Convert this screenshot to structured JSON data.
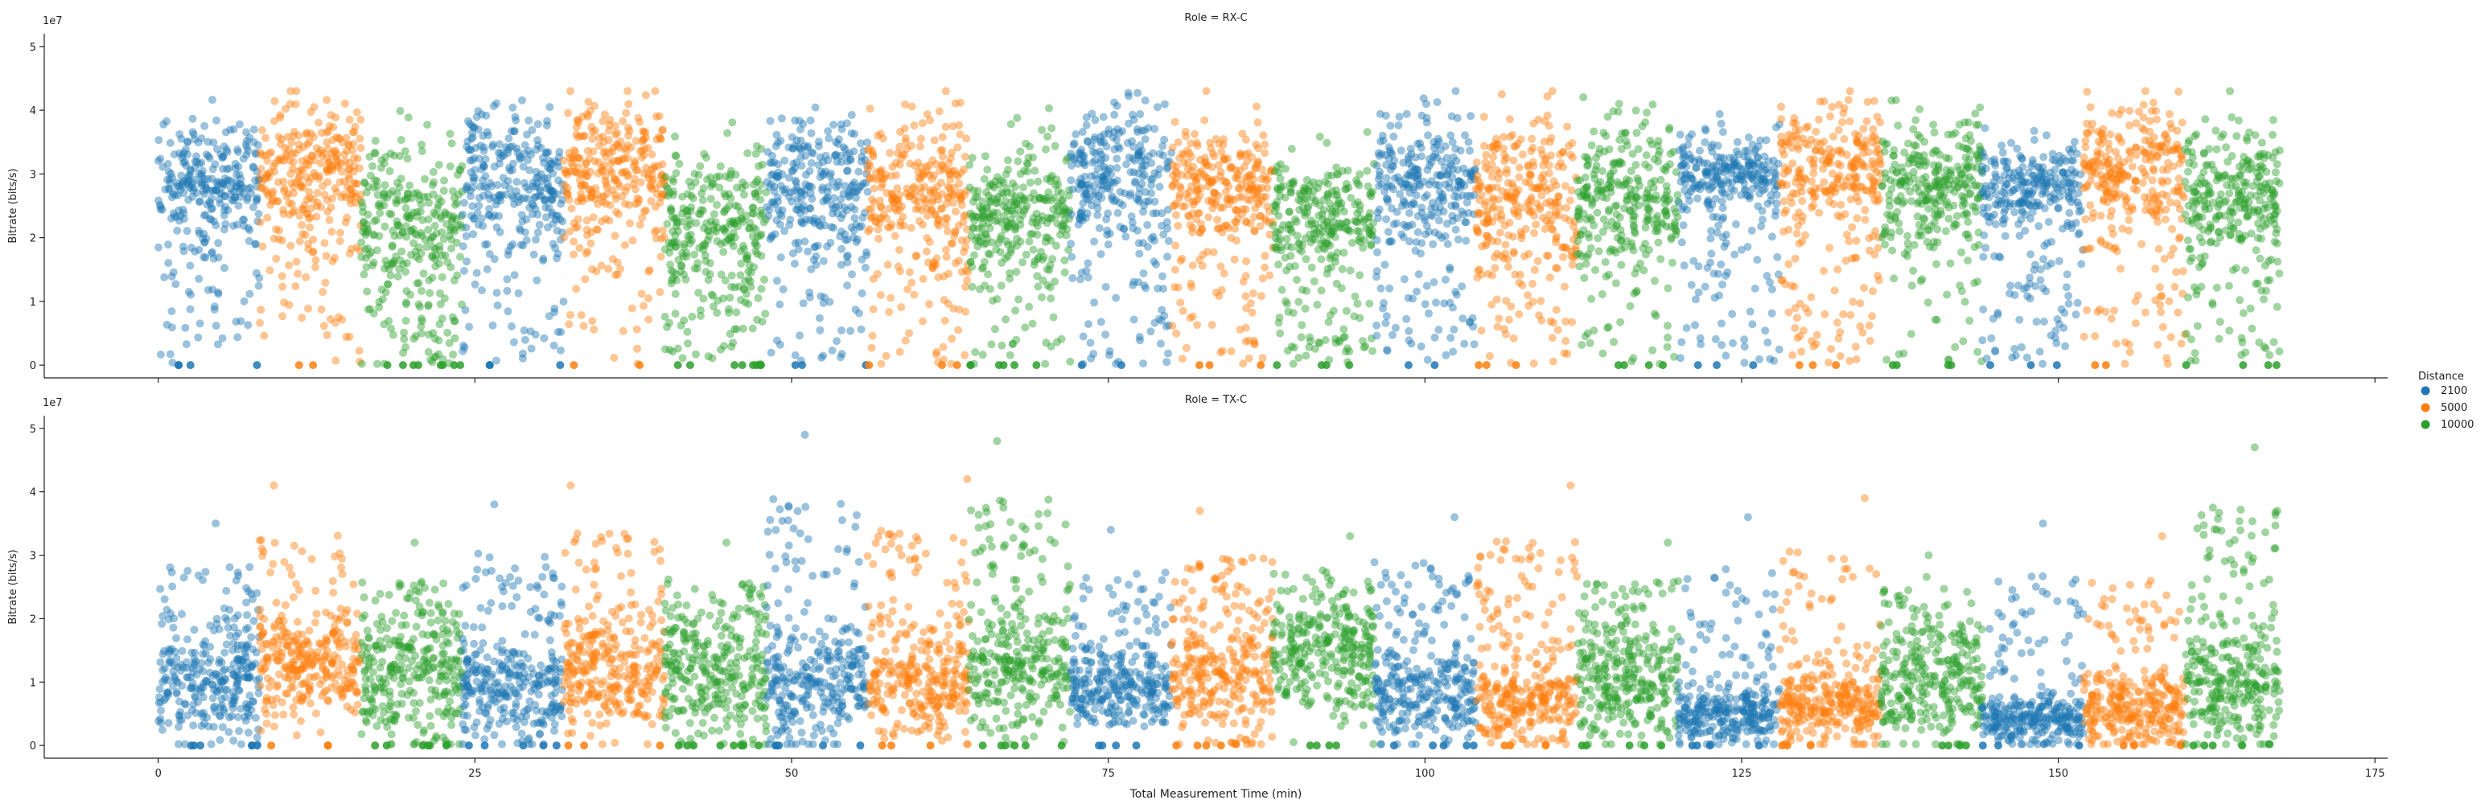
{
  "chart_data": {
    "type": "scatter",
    "xlabel": "Total Measurement Time (min)",
    "x_ticks": [
      0,
      25,
      50,
      75,
      100,
      125,
      150,
      175
    ],
    "xlim": [
      -9,
      176
    ],
    "legend": {
      "title": "Distance",
      "placement": "right",
      "entries": [
        "2100",
        "5000",
        "10000"
      ]
    },
    "colors": {
      "2100": "#1f77b4",
      "5000": "#ff7f0e",
      "10000": "#2ca02c"
    },
    "point_alpha": 0.45,
    "panels": [
      {
        "title": "Role = RX-C",
        "ylabel": "Bitrate (bits/s)",
        "y_offset_label": "1e7",
        "y_ticks": [
          0,
          1,
          2,
          3,
          4,
          5
        ],
        "ylim": [
          -0.2,
          5.2
        ],
        "grid": false,
        "segments": [
          {
            "distance": "2100",
            "x": [
              0,
              8
            ],
            "center": 2.9,
            "spread": 0.45,
            "low_tail": 0.25,
            "zeros": 4
          },
          {
            "distance": "5000",
            "x": [
              8,
              16
            ],
            "center": 3.1,
            "spread": 0.55,
            "low_tail": 0.22,
            "zeros": 2
          },
          {
            "distance": "10000",
            "x": [
              16,
              24
            ],
            "center": 2.4,
            "spread": 0.55,
            "low_tail": 0.28,
            "zeros": 8
          },
          {
            "distance": "2100",
            "x": [
              24,
              32
            ],
            "center": 3.0,
            "spread": 0.5,
            "low_tail": 0.3,
            "zeros": 3
          },
          {
            "distance": "5000",
            "x": [
              32,
              40
            ],
            "center": 3.1,
            "spread": 0.55,
            "low_tail": 0.22,
            "zeros": 2
          },
          {
            "distance": "10000",
            "x": [
              40,
              48
            ],
            "center": 2.3,
            "spread": 0.55,
            "low_tail": 0.3,
            "zeros": 8
          },
          {
            "distance": "2100",
            "x": [
              48,
              56
            ],
            "center": 2.9,
            "spread": 0.55,
            "low_tail": 0.28,
            "zeros": 3
          },
          {
            "distance": "5000",
            "x": [
              56,
              64
            ],
            "center": 2.8,
            "spread": 0.55,
            "low_tail": 0.25,
            "zeros": 3
          },
          {
            "distance": "10000",
            "x": [
              64,
              72
            ],
            "center": 2.5,
            "spread": 0.5,
            "low_tail": 0.25,
            "zeros": 6
          },
          {
            "distance": "2100",
            "x": [
              72,
              80
            ],
            "center": 3.0,
            "spread": 0.5,
            "low_tail": 0.28,
            "zeros": 2
          },
          {
            "distance": "5000",
            "x": [
              80,
              88
            ],
            "center": 2.8,
            "spread": 0.5,
            "low_tail": 0.22,
            "zeros": 3
          },
          {
            "distance": "10000",
            "x": [
              88,
              96
            ],
            "center": 2.4,
            "spread": 0.45,
            "low_tail": 0.25,
            "zeros": 4
          },
          {
            "distance": "2100",
            "x": [
              96,
              104
            ],
            "center": 3.0,
            "spread": 0.5,
            "low_tail": 0.25,
            "zeros": 2
          },
          {
            "distance": "5000",
            "x": [
              104,
              112
            ],
            "center": 2.8,
            "spread": 0.6,
            "low_tail": 0.28,
            "zeros": 3
          },
          {
            "distance": "10000",
            "x": [
              112,
              120
            ],
            "center": 2.7,
            "spread": 0.55,
            "low_tail": 0.25,
            "zeros": 4
          },
          {
            "distance": "2100",
            "x": [
              120,
              128
            ],
            "center": 3.0,
            "spread": 0.3,
            "low_tail": 0.3,
            "zeros": 3
          },
          {
            "distance": "5000",
            "x": [
              128,
              136
            ],
            "center": 3.2,
            "spread": 0.5,
            "low_tail": 0.3,
            "zeros": 3
          },
          {
            "distance": "10000",
            "x": [
              136,
              144
            ],
            "center": 2.9,
            "spread": 0.5,
            "low_tail": 0.22,
            "zeros": 4
          },
          {
            "distance": "2100",
            "x": [
              144,
              152
            ],
            "center": 2.85,
            "spread": 0.35,
            "low_tail": 0.3,
            "zeros": 3
          },
          {
            "distance": "5000",
            "x": [
              152,
              160
            ],
            "center": 3.0,
            "spread": 0.55,
            "low_tail": 0.22,
            "zeros": 2
          },
          {
            "distance": "10000",
            "x": [
              160,
              167.5
            ],
            "center": 2.7,
            "spread": 0.55,
            "low_tail": 0.22,
            "zeros": 4
          }
        ]
      },
      {
        "title": "Role = TX-C",
        "ylabel": "Bitrate (bits/s)",
        "y_offset_label": "1e7",
        "y_ticks": [
          0,
          1,
          2,
          3,
          4,
          5
        ],
        "ylim": [
          -0.2,
          5.2
        ],
        "grid": false,
        "segments": [
          {
            "distance": "2100",
            "x": [
              0,
              8
            ],
            "center": 0.9,
            "spread": 0.4,
            "high_tail": 0.25,
            "high_max": 3.5,
            "zeros": 6
          },
          {
            "distance": "5000",
            "x": [
              8,
              16
            ],
            "center": 1.2,
            "spread": 0.4,
            "high_tail": 0.25,
            "high_max": 4.1,
            "zeros": 3
          },
          {
            "distance": "10000",
            "x": [
              16,
              24
            ],
            "center": 1.1,
            "spread": 0.55,
            "high_tail": 0.2,
            "high_max": 3.2,
            "zeros": 6
          },
          {
            "distance": "2100",
            "x": [
              24,
              32
            ],
            "center": 0.85,
            "spread": 0.4,
            "high_tail": 0.25,
            "high_max": 3.8,
            "zeros": 5
          },
          {
            "distance": "5000",
            "x": [
              32,
              40
            ],
            "center": 1.1,
            "spread": 0.45,
            "high_tail": 0.25,
            "high_max": 4.1,
            "zeros": 3
          },
          {
            "distance": "10000",
            "x": [
              40,
              48
            ],
            "center": 1.1,
            "spread": 0.55,
            "high_tail": 0.2,
            "high_max": 3.2,
            "zeros": 8
          },
          {
            "distance": "2100",
            "x": [
              48,
              56
            ],
            "center": 0.9,
            "spread": 0.45,
            "high_tail": 0.25,
            "high_max": 4.9,
            "zeros": 5
          },
          {
            "distance": "5000",
            "x": [
              56,
              64
            ],
            "center": 0.95,
            "spread": 0.45,
            "high_tail": 0.25,
            "high_max": 4.2,
            "zeros": 3
          },
          {
            "distance": "10000",
            "x": [
              64,
              72
            ],
            "center": 1.2,
            "spread": 0.5,
            "high_tail": 0.2,
            "high_max": 4.8,
            "zeros": 6
          },
          {
            "distance": "2100",
            "x": [
              72,
              80
            ],
            "center": 0.85,
            "spread": 0.35,
            "high_tail": 0.25,
            "high_max": 3.4,
            "zeros": 4
          },
          {
            "distance": "5000",
            "x": [
              80,
              88
            ],
            "center": 1.0,
            "spread": 0.5,
            "high_tail": 0.25,
            "high_max": 3.7,
            "zeros": 4
          },
          {
            "distance": "10000",
            "x": [
              88,
              96
            ],
            "center": 1.4,
            "spread": 0.5,
            "high_tail": 0.2,
            "high_max": 3.3,
            "zeros": 4
          },
          {
            "distance": "2100",
            "x": [
              96,
              104
            ],
            "center": 0.8,
            "spread": 0.4,
            "high_tail": 0.25,
            "high_max": 3.6,
            "zeros": 5
          },
          {
            "distance": "5000",
            "x": [
              104,
              112
            ],
            "center": 0.6,
            "spread": 0.3,
            "high_tail": 0.35,
            "high_max": 4.1,
            "zeros": 3
          },
          {
            "distance": "10000",
            "x": [
              112,
              120
            ],
            "center": 1.0,
            "spread": 0.5,
            "high_tail": 0.2,
            "high_max": 3.2,
            "zeros": 5
          },
          {
            "distance": "2100",
            "x": [
              120,
              128
            ],
            "center": 0.45,
            "spread": 0.25,
            "high_tail": 0.25,
            "high_max": 3.6,
            "zeros": 4
          },
          {
            "distance": "5000",
            "x": [
              128,
              136
            ],
            "center": 0.6,
            "spread": 0.3,
            "high_tail": 0.25,
            "high_max": 3.9,
            "zeros": 3
          },
          {
            "distance": "10000",
            "x": [
              136,
              144
            ],
            "center": 1.0,
            "spread": 0.5,
            "high_tail": 0.2,
            "high_max": 3.0,
            "zeros": 4
          },
          {
            "distance": "2100",
            "x": [
              144,
              152
            ],
            "center": 0.4,
            "spread": 0.2,
            "high_tail": 0.2,
            "high_max": 3.5,
            "zeros": 3
          },
          {
            "distance": "5000",
            "x": [
              152,
              160
            ],
            "center": 0.55,
            "spread": 0.3,
            "high_tail": 0.2,
            "high_max": 3.3,
            "zeros": 3
          },
          {
            "distance": "10000",
            "x": [
              160,
              167.5
            ],
            "center": 0.9,
            "spread": 0.5,
            "high_tail": 0.2,
            "high_max": 4.7,
            "zeros": 4
          }
        ]
      }
    ]
  }
}
